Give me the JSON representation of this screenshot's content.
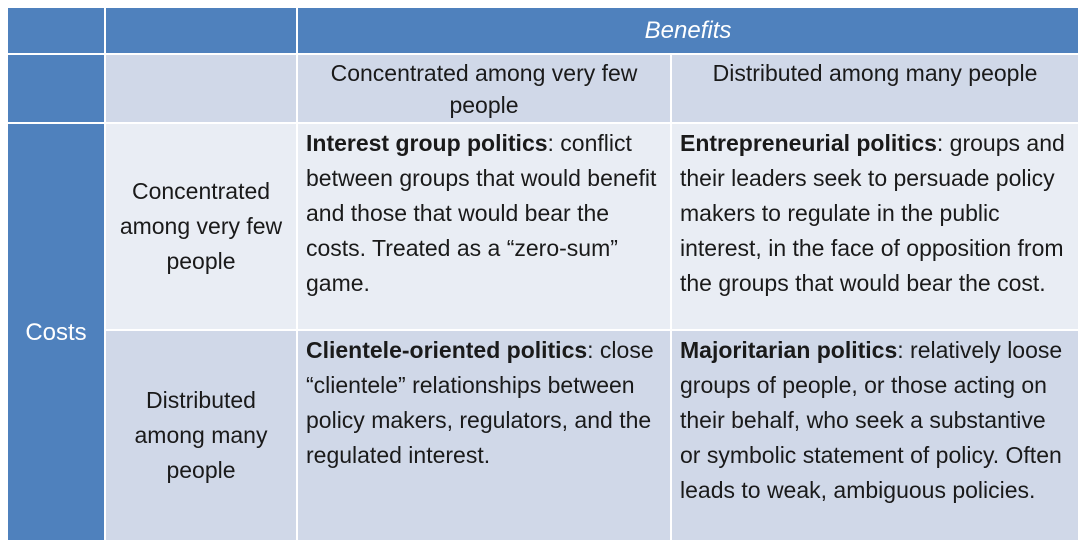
{
  "table": {
    "benefits_header": "Benefits",
    "costs_header": "Costs",
    "benefit_columns": [
      "Concentrated among very few people",
      "Distributed among many people"
    ],
    "cost_rows": [
      "Concentrated among very few people",
      "Distributed among many people"
    ],
    "cells": [
      [
        {
          "title": "Interest group politics",
          "text": ": conflict between groups that would benefit and those that would bear the costs. Treated as a “zero-sum” game."
        },
        {
          "title": "Entrepreneurial politics",
          "text": ": groups and their leaders seek to persuade policy makers to regulate in the public interest, in the face of opposition from the groups that would bear the cost."
        }
      ],
      [
        {
          "title": "Clientele-oriented politics",
          "text": ": close “clientele” relationships between policy makers, regulators, and the regulated interest."
        },
        {
          "title": "Majoritarian politics",
          "text": ": relatively loose groups of people, or those acting on their behalf, who seek a substantive or symbolic statement of policy. Often leads to weak, ambiguous policies."
        }
      ]
    ],
    "colors": {
      "header_blue": "#4f81bd",
      "row_light": "#d0d8e8",
      "row_lighter": "#e9edf4"
    }
  }
}
